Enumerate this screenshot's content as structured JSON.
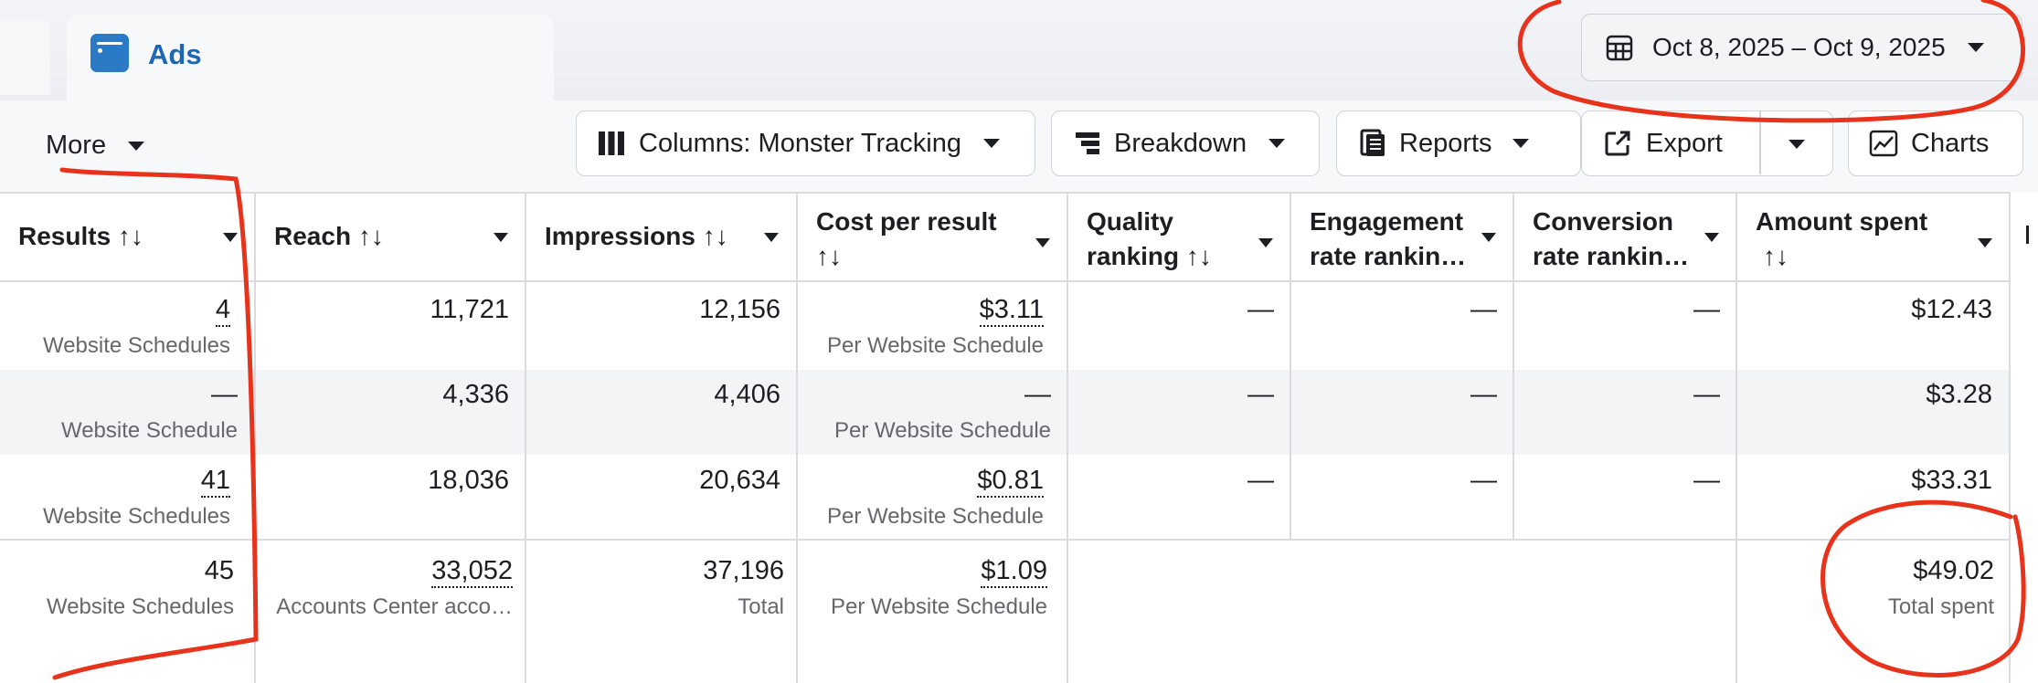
{
  "tabs": {
    "ads_label": "Ads"
  },
  "date_range": {
    "label": "Oct 8, 2025 – Oct 9, 2025"
  },
  "toolbar": {
    "more_label": "More",
    "columns_label": "Columns: Monster Tracking",
    "breakdown_label": "Breakdown",
    "reports_label": "Reports",
    "export_label": "Export",
    "charts_label": "Charts"
  },
  "table": {
    "headers": {
      "results": "Results ↑↓",
      "reach": "Reach ↑↓",
      "impressions": "Impressions ↑↓",
      "cost_l1": "Cost per result",
      "cost_l2": "↑↓",
      "quality_l1": "Quality",
      "quality_l2": "ranking ↑↓",
      "engagement_l1": "Engagement",
      "engagement_l2": "rate rankin…",
      "conversion_l1": "Conversion",
      "conversion_l2": "rate rankin…",
      "amount_l1": "Amount spent",
      "amount_l2": "↑↓"
    },
    "rows": [
      {
        "results": "4",
        "results_sub": "Website Schedules",
        "reach": "11,721",
        "impressions": "12,156",
        "cost": "$3.11",
        "cost_sub": "Per Website Schedule",
        "quality": "—",
        "engagement": "—",
        "conversion": "—",
        "amount": "$12.43"
      },
      {
        "results": "—",
        "results_sub": "Website Schedule",
        "reach": "4,336",
        "impressions": "4,406",
        "cost": "—",
        "cost_sub": "Per Website Schedule",
        "quality": "—",
        "engagement": "—",
        "conversion": "—",
        "amount": "$3.28"
      },
      {
        "results": "41",
        "results_sub": "Website Schedules",
        "reach": "18,036",
        "impressions": "20,634",
        "cost": "$0.81",
        "cost_sub": "Per Website Schedule",
        "quality": "—",
        "engagement": "—",
        "conversion": "—",
        "amount": "$33.31"
      }
    ],
    "totals": {
      "results": "45",
      "results_sub": "Website Schedules",
      "reach": "33,052",
      "reach_sub": "Accounts Center acco…",
      "impressions": "37,196",
      "impressions_sub": "Total",
      "cost": "$1.09",
      "cost_sub": "Per Website Schedule",
      "amount": "$49.02",
      "amount_sub": "Total spent"
    }
  },
  "colors": {
    "accent": "#1e67b2",
    "annotation": "#e8331c",
    "border": "#d9dbdf"
  },
  "icons": [
    "ads-icon",
    "calendar-icon",
    "columns-icon",
    "breakdown-icon",
    "reports-icon",
    "export-icon",
    "charts-icon"
  ]
}
